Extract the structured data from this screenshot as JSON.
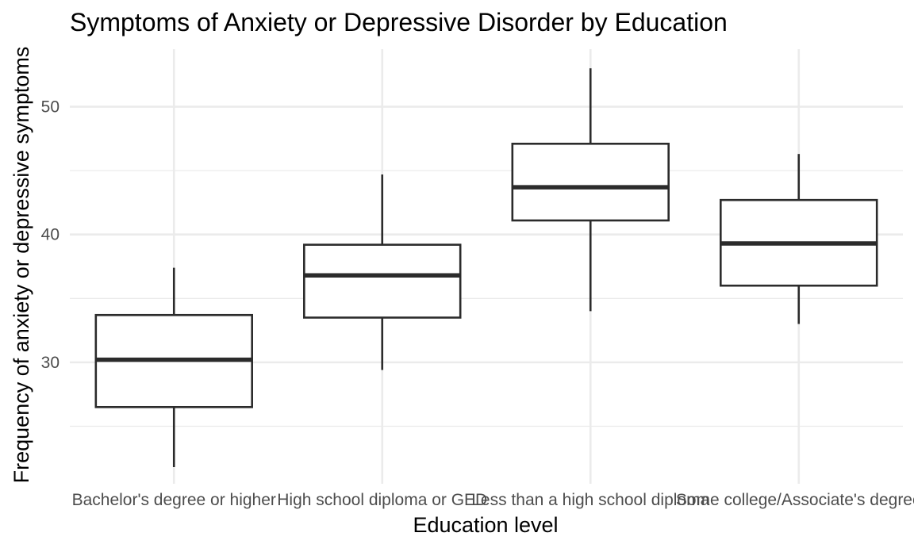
{
  "chart_data": {
    "type": "boxplot",
    "title": "Symptoms of Anxiety or Depressive Disorder by Education",
    "xlabel": "Education level",
    "ylabel": "Frequency of anxiety or depressive symptoms",
    "ylim": [
      20.5,
      54.5
    ],
    "y_major_ticks": [
      30,
      40,
      50
    ],
    "y_minor_ticks": [
      25,
      35,
      45
    ],
    "grid": true,
    "legend": "none",
    "categories": [
      "Bachelor's degree or higher",
      "High school diploma or GED",
      "Less than a high school diploma",
      "Some college/Associate's degree"
    ],
    "boxes": [
      {
        "category": "Bachelor's degree or higher",
        "min": 21.8,
        "q1": 26.5,
        "median": 30.2,
        "q3": 33.7,
        "max": 37.4
      },
      {
        "category": "High school diploma or GED",
        "min": 29.4,
        "q1": 33.5,
        "median": 36.8,
        "q3": 39.2,
        "max": 44.7
      },
      {
        "category": "Less than a high school diploma",
        "min": 34.0,
        "q1": 41.1,
        "median": 43.7,
        "q3": 47.1,
        "max": 53.0
      },
      {
        "category": "Some college/Associate's degree",
        "min": 33.0,
        "q1": 36.0,
        "median": 39.3,
        "q3": 42.7,
        "max": 46.3
      }
    ]
  }
}
